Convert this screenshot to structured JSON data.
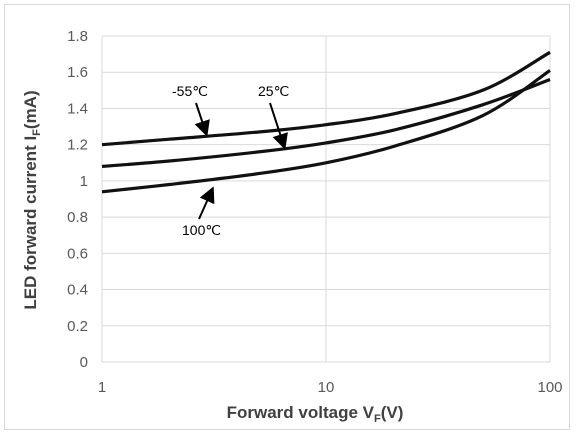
{
  "chart_data": {
    "type": "line",
    "x_scale": "log",
    "xlim": [
      1,
      100
    ],
    "ylim": [
      0,
      1.8
    ],
    "x_ticks": [
      1,
      10,
      100
    ],
    "x_tick_labels": [
      "1",
      "10",
      "100"
    ],
    "y_ticks": [
      0,
      0.2,
      0.4,
      0.6,
      0.8,
      1,
      1.2,
      1.4,
      1.6,
      1.8
    ],
    "y_tick_labels": [
      "0",
      "0.2",
      "0.4",
      "0.6",
      "0.8",
      "1",
      "1.2",
      "1.4",
      "1.6",
      "1.8"
    ],
    "xlabel": {
      "main": "Forward voltage V",
      "sub": "F",
      "suffix": "(V)"
    },
    "ylabel": {
      "main": "LED forward current I",
      "sub": "F",
      "suffix": "(mA)"
    },
    "grid": "horizontal and vertical",
    "series": [
      {
        "name": "-55℃",
        "x": [
          1,
          2,
          5,
          10,
          20,
          50,
          100
        ],
        "y": [
          1.2,
          1.23,
          1.27,
          1.31,
          1.37,
          1.5,
          1.71
        ]
      },
      {
        "name": "25℃",
        "x": [
          1,
          2,
          5,
          10,
          20,
          50,
          100
        ],
        "y": [
          1.08,
          1.11,
          1.16,
          1.21,
          1.28,
          1.42,
          1.56
        ]
      },
      {
        "name": "100℃",
        "x": [
          1,
          2,
          5,
          10,
          20,
          50,
          100
        ],
        "y": [
          0.94,
          0.98,
          1.04,
          1.1,
          1.19,
          1.36,
          1.61
        ]
      }
    ],
    "annotations": [
      {
        "text": "-55℃",
        "series": "-55℃"
      },
      {
        "text": "25℃",
        "series": "25℃"
      },
      {
        "text": "100℃",
        "series": "100℃"
      }
    ]
  }
}
